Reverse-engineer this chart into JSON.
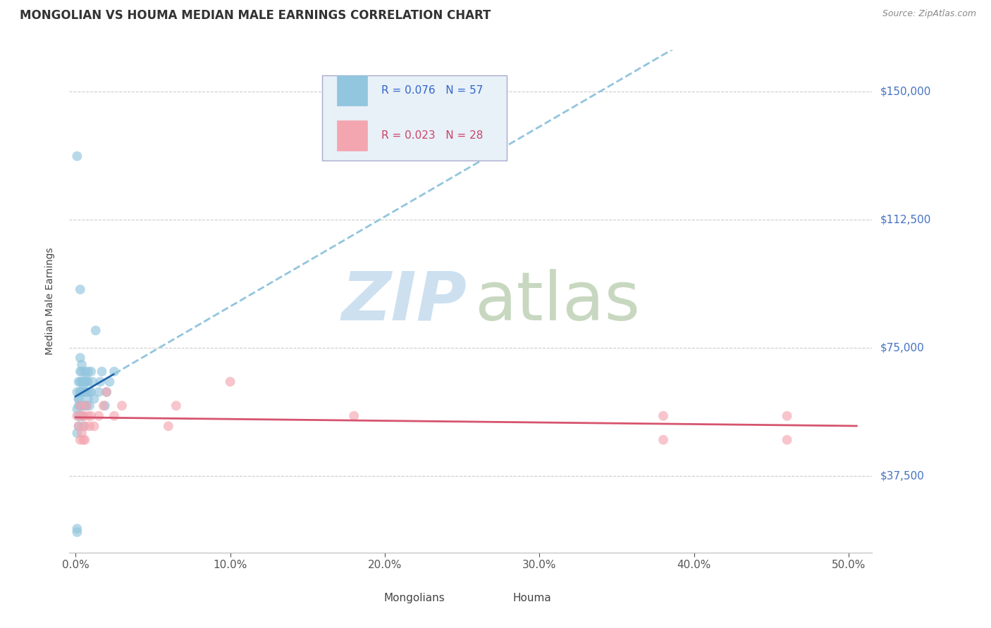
{
  "title": "MONGOLIAN VS HOUMA MEDIAN MALE EARNINGS CORRELATION CHART",
  "source": "Source: ZipAtlas.com",
  "ylabel": "Median Male Earnings",
  "xlabel_ticks": [
    "0.0%",
    "10.0%",
    "20.0%",
    "30.0%",
    "40.0%",
    "50.0%"
  ],
  "xlabel_vals": [
    0.0,
    0.1,
    0.2,
    0.3,
    0.4,
    0.5
  ],
  "ytick_labels": [
    "$37,500",
    "$75,000",
    "$112,500",
    "$150,000"
  ],
  "ytick_vals": [
    37500,
    75000,
    112500,
    150000
  ],
  "ymin": 15000,
  "ymax": 162000,
  "xmin": -0.004,
  "xmax": 0.515,
  "mongolian_color": "#92c5de",
  "houma_color": "#f4a6b0",
  "mongolian_line_solid_color": "#2166ac",
  "mongolian_line_dash_color": "#92c5de",
  "houma_line_color": "#d6546e",
  "watermark_zip_color": "#cce0f0",
  "watermark_atlas_color": "#c8d8c0",
  "legend_box_color": "#e8f0f8",
  "mongolian_R": 0.076,
  "mongolian_N": 57,
  "houma_R": 0.023,
  "houma_N": 28,
  "mong_x": [
    0.001,
    0.001,
    0.001,
    0.001,
    0.002,
    0.002,
    0.002,
    0.002,
    0.002,
    0.003,
    0.003,
    0.003,
    0.003,
    0.003,
    0.003,
    0.004,
    0.004,
    0.004,
    0.004,
    0.004,
    0.004,
    0.005,
    0.005,
    0.005,
    0.005,
    0.005,
    0.006,
    0.006,
    0.006,
    0.006,
    0.007,
    0.007,
    0.007,
    0.008,
    0.008,
    0.008,
    0.009,
    0.009,
    0.01,
    0.01,
    0.011,
    0.012,
    0.013,
    0.015,
    0.016,
    0.017,
    0.019,
    0.02,
    0.022,
    0.025,
    0.003,
    0.001,
    0.001,
    0.002,
    0.003,
    0.005,
    0.007
  ],
  "mong_y": [
    131000,
    62000,
    57000,
    50000,
    65000,
    60000,
    58000,
    55000,
    52000,
    72000,
    68000,
    65000,
    62000,
    58000,
    55000,
    70000,
    68000,
    65000,
    62000,
    58000,
    55000,
    65000,
    62000,
    58000,
    55000,
    52000,
    68000,
    65000,
    62000,
    58000,
    65000,
    62000,
    58000,
    68000,
    65000,
    60000,
    62000,
    58000,
    68000,
    62000,
    65000,
    60000,
    80000,
    62000,
    65000,
    68000,
    58000,
    62000,
    65000,
    68000,
    92000,
    22000,
    21000,
    60000,
    62000,
    64000,
    66000
  ],
  "houma_x": [
    0.001,
    0.002,
    0.003,
    0.003,
    0.004,
    0.004,
    0.005,
    0.005,
    0.006,
    0.006,
    0.007,
    0.008,
    0.009,
    0.01,
    0.012,
    0.015,
    0.018,
    0.02,
    0.025,
    0.03,
    0.06,
    0.065,
    0.1,
    0.18,
    0.38,
    0.46,
    0.38,
    0.46
  ],
  "houma_y": [
    55000,
    52000,
    58000,
    48000,
    55000,
    50000,
    55000,
    48000,
    52000,
    48000,
    58000,
    55000,
    52000,
    55000,
    52000,
    55000,
    58000,
    62000,
    55000,
    58000,
    52000,
    58000,
    65000,
    55000,
    55000,
    55000,
    48000,
    48000
  ]
}
